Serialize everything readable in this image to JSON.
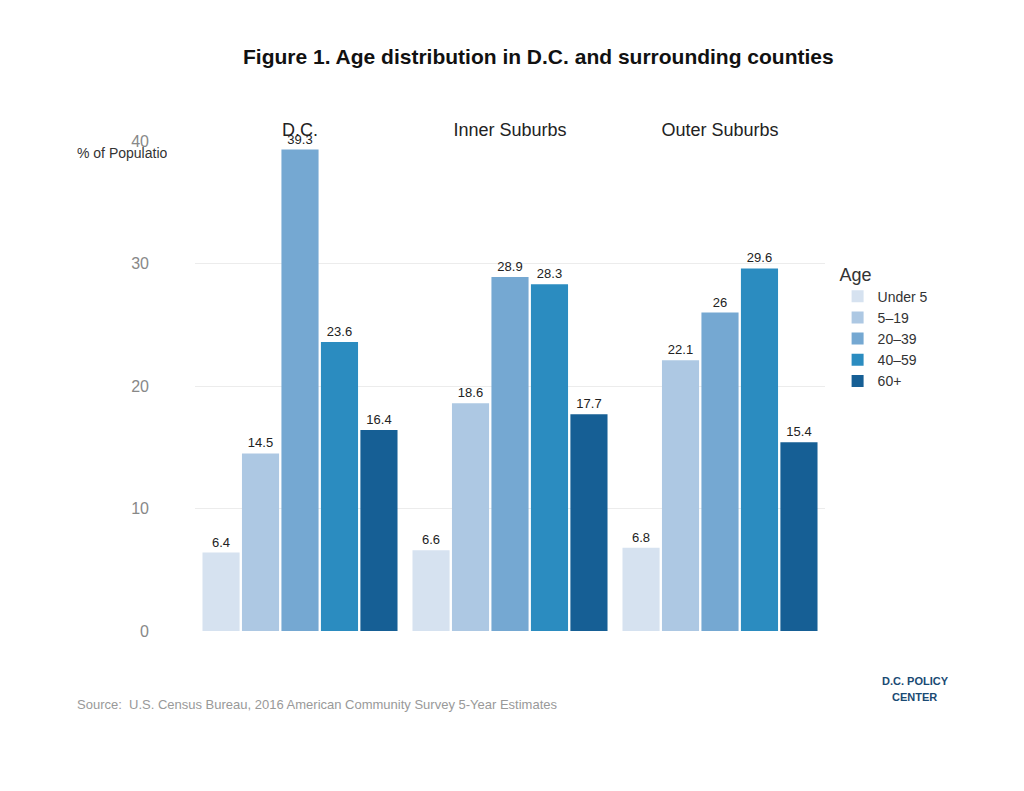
{
  "chart_data": {
    "type": "bar",
    "title": "Figure 1. Age distribution in D.C. and surrounding counties",
    "y_label": "% of Population",
    "legend_title": "Age",
    "annotations": [
      "Source:  U.S. Census Bureau, 2016 American Community Survey 5-Year Estimates",
      "D.C. POLICY",
      "CENTER"
    ],
    "categories": [
      "D.C.",
      "Inner Suburbs",
      "Outer Suburbs"
    ],
    "series": [
      {
        "name": "Under 5",
        "color": "#d6e2f0",
        "values": [
          6.4,
          6.6,
          6.8
        ]
      },
      {
        "name": "5–19",
        "color": "#adc8e3",
        "values": [
          14.5,
          18.6,
          22.1
        ]
      },
      {
        "name": "20–39",
        "color": "#75a8d2",
        "values": [
          39.3,
          28.9,
          26
        ]
      },
      {
        "name": "40–59",
        "color": "#2b8cc0",
        "values": [
          23.6,
          28.3,
          29.6
        ]
      },
      {
        "name": "60+",
        "color": "#165f95",
        "values": [
          16.4,
          17.7,
          15.4
        ]
      }
    ],
    "ylim": [
      0,
      40
    ],
    "yticks": [
      0,
      10,
      20,
      30,
      40
    ],
    "grid": true,
    "legend": "right",
    "data_labels": true
  }
}
